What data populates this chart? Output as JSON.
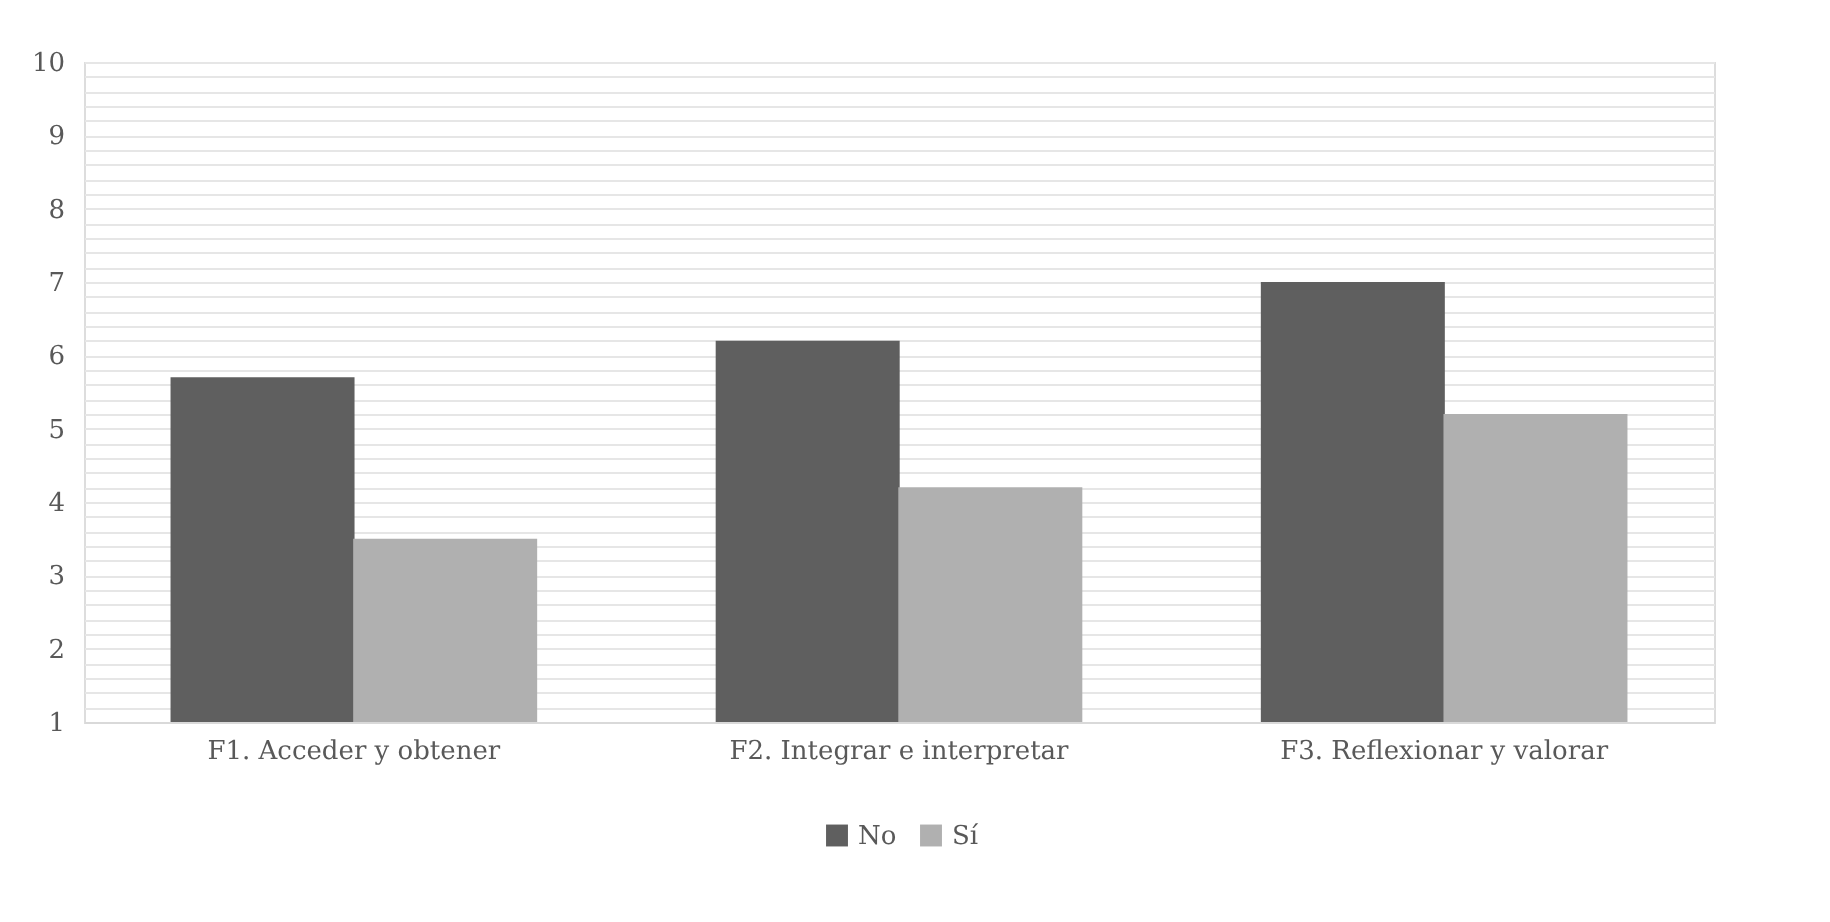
{
  "chart_data": {
    "type": "bar",
    "categories": [
      "F1. Acceder y obtener",
      "F2. Integrar e interpretar",
      "F3. Reflexionar y valorar"
    ],
    "series": [
      {
        "name": "No",
        "color": "#5f5f5f",
        "values": [
          5.7,
          6.2,
          7.0
        ]
      },
      {
        "name": "Sí",
        "color": "#b0b0b0",
        "values": [
          3.5,
          4.2,
          5.2
        ]
      }
    ],
    "ylim": [
      1,
      10
    ],
    "yticks": [
      1,
      {
        "value": 1.2,
        "label": null
      },
      {
        "value": 1.4,
        "label": null
      },
      {
        "value": 1.6,
        "label": null
      },
      {
        "value": 1.8,
        "label": null
      },
      2,
      {
        "value": 2.2,
        "label": null
      },
      {
        "value": 2.4,
        "label": null
      },
      {
        "value": 2.6,
        "label": null
      },
      {
        "value": 2.8,
        "label": null
      },
      3,
      {
        "value": 3.2,
        "label": null
      },
      {
        "value": 3.4,
        "label": null
      },
      {
        "value": 3.6,
        "label": null
      },
      {
        "value": 3.8,
        "label": null
      },
      4,
      {
        "value": 4.2,
        "label": null
      },
      {
        "value": 4.4,
        "label": null
      },
      {
        "value": 4.6,
        "label": null
      },
      {
        "value": 4.8,
        "label": null
      },
      5,
      {
        "value": 5.2,
        "label": null
      },
      {
        "value": 5.4,
        "label": null
      },
      {
        "value": 5.6,
        "label": null
      },
      {
        "value": 5.8,
        "label": null
      },
      6,
      {
        "value": 6.2,
        "label": null
      },
      {
        "value": 6.4,
        "label": null
      },
      {
        "value": 6.6,
        "label": null
      },
      {
        "value": 6.8,
        "label": null
      },
      7,
      {
        "value": 7.2,
        "label": null
      },
      {
        "value": 7.4,
        "label": null
      },
      {
        "value": 7.6,
        "label": null
      },
      {
        "value": 7.8,
        "label": null
      },
      8,
      {
        "value": 8.2,
        "label": null
      },
      {
        "value": 8.4,
        "label": null
      },
      {
        "value": 8.6,
        "label": null
      },
      {
        "value": 8.8,
        "label": null
      },
      9,
      {
        "value": 9.2,
        "label": null
      },
      {
        "value": 9.4,
        "label": null
      },
      {
        "value": 9.6,
        "label": null
      },
      {
        "value": 9.8,
        "label": null
      },
      10
    ],
    "grid": "y",
    "legend": "bottom"
  }
}
